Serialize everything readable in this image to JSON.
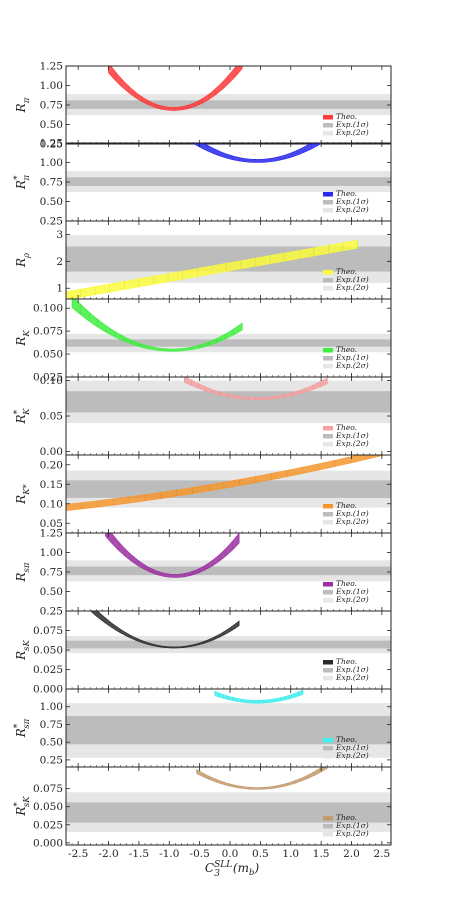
{
  "chart_data": {
    "type": "area",
    "shared_x": {
      "xlim": [
        -2.7,
        2.65
      ],
      "ticks": [
        "-2.5",
        "-2.0",
        "-1.5",
        "-1.0",
        "-0.5",
        "0.0",
        "0.5",
        "1.0",
        "1.5",
        "2.0",
        "2.5"
      ],
      "tick_values": [
        -2.5,
        -2.0,
        -1.5,
        -1.0,
        -0.5,
        0.0,
        0.5,
        1.0,
        1.5,
        2.0,
        2.5
      ],
      "xlabel_main": "C",
      "xlabel_sub": "3",
      "xlabel_sup": "SLL",
      "xlabel_tail": "(m",
      "xlabel_tail_sub": "b",
      "xlabel_close": ")"
    },
    "legend_labels": {
      "theo": "Theo.",
      "exp1": "Exp.(1σ)",
      "exp2": "Exp.(2σ)"
    },
    "legend_position": "bottom-right",
    "colors": {
      "exp1": "#bcbcbc",
      "exp2": "#e6e6e6"
    },
    "panels": [
      {
        "ylabel": "R",
        "ysub": "π",
        "ysup": "",
        "ylim": [
          0.25,
          1.25
        ],
        "yticks": [
          "0.25",
          "0.50",
          "0.75",
          "1.00",
          "1.25"
        ],
        "ytick_values": [
          0.25,
          0.5,
          0.75,
          1.0,
          1.25
        ],
        "exp1": [
          0.7,
          0.81
        ],
        "exp2": [
          0.62,
          0.89
        ],
        "color": "#ff3a3a",
        "theory": {
          "x_range": [
            -2.0,
            0.2
          ],
          "center": -0.93,
          "vertex": [
            0.68,
            0.72
          ],
          "curvature": [
            0.42,
            0.5
          ]
        }
      },
      {
        "ylabel": "R",
        "ysub": "π",
        "ysup": "*",
        "ylim": [
          0.25,
          1.25
        ],
        "yticks": [
          "0.25",
          "0.50",
          "0.75",
          "1.00",
          "1.25"
        ],
        "ytick_values": [
          0.25,
          0.5,
          0.75,
          1.0,
          1.25
        ],
        "exp1": [
          0.7,
          0.81
        ],
        "exp2": [
          0.62,
          0.89
        ],
        "color": "#2828ee",
        "theory": {
          "x_range": [
            -0.6,
            1.55
          ],
          "center": 0.45,
          "vertex": [
            1.0,
            1.04
          ],
          "curvature": [
            0.22,
            0.27
          ]
        }
      },
      {
        "ylabel": "R",
        "ysub": "ρ",
        "ysup": "",
        "ylim": [
          0.6,
          3.5
        ],
        "yticks": [
          "1",
          "2",
          "3"
        ],
        "ytick_values": [
          1,
          2,
          3
        ],
        "exp1": [
          1.62,
          2.55
        ],
        "exp2": [
          1.2,
          2.97
        ],
        "color": "#fafa3c",
        "theory": {
          "line": true,
          "x_range": [
            -2.7,
            2.1
          ],
          "y0": [
            1.65,
            1.95
          ],
          "slope": 0.4
        }
      },
      {
        "ylabel": "R",
        "ysub": "K",
        "ysup": "",
        "ylim": [
          0.025,
          0.11
        ],
        "yticks": [
          "0.025",
          "0.050",
          "0.075",
          "0.100"
        ],
        "ytick_values": [
          0.025,
          0.05,
          0.075,
          0.1
        ],
        "exp1": [
          0.058,
          0.066
        ],
        "exp2": [
          0.052,
          0.072
        ],
        "color": "#3ef03e",
        "theory": {
          "x_range": [
            -2.6,
            0.2
          ],
          "center": -0.95,
          "vertex": [
            0.053,
            0.0555
          ],
          "curvature": [
            0.0175,
            0.0215
          ]
        }
      },
      {
        "ylabel": "R",
        "ysub": "K",
        "ysup": "*",
        "ylim": [
          -0.005,
          0.105
        ],
        "yticks": [
          "0.00",
          "0.05",
          "0.10"
        ],
        "ytick_values": [
          0.0,
          0.05,
          0.1
        ],
        "exp1": [
          0.055,
          0.085
        ],
        "exp2": [
          0.04,
          0.1
        ],
        "color": "#f6a0a0",
        "theory": {
          "x_range": [
            -0.75,
            1.6
          ],
          "center": 0.45,
          "vertex": [
            0.073,
            0.076
          ],
          "curvature": [
            0.017,
            0.021
          ]
        }
      },
      {
        "ylabel": "R",
        "ysub": "K*",
        "ysup": "",
        "ylim": [
          0.025,
          0.225
        ],
        "yticks": [
          "0.05",
          "0.10",
          "0.15",
          "0.20"
        ],
        "ytick_values": [
          0.05,
          0.1,
          0.15,
          0.2
        ],
        "exp1": [
          0.115,
          0.16
        ],
        "exp2": [
          0.09,
          0.185
        ],
        "color": "#f5962e",
        "theory": {
          "line": true,
          "x_range": [
            -2.7,
            2.5
          ],
          "y0": [
            0.142,
            0.158
          ],
          "slope": 0.0275,
          "curve": 0.002
        }
      },
      {
        "ylabel": "R",
        "ysub": "sπ",
        "ysup": "",
        "ylim": [
          0.25,
          1.25
        ],
        "yticks": [
          "0.25",
          "0.50",
          "0.75",
          "1.00",
          "1.25"
        ],
        "ytick_values": [
          0.25,
          0.5,
          0.75,
          1.0,
          1.25
        ],
        "exp1": [
          0.71,
          0.82
        ],
        "exp2": [
          0.63,
          0.9
        ],
        "color": "#9b2fa1",
        "theory": {
          "x_range": [
            -2.05,
            0.15
          ],
          "center": -0.9,
          "vertex": [
            0.68,
            0.72
          ],
          "curvature": [
            0.4,
            0.48
          ]
        }
      },
      {
        "ylabel": "R",
        "ysub": "sK",
        "ysup": "",
        "ylim": [
          0.0,
          0.1
        ],
        "yticks": [
          "0.000",
          "0.025",
          "0.050",
          "0.075"
        ],
        "ytick_values": [
          0.0,
          0.025,
          0.05,
          0.075
        ],
        "exp1": [
          0.052,
          0.062
        ],
        "exp2": [
          0.046,
          0.068
        ],
        "color": "#2b2b2b",
        "theory": {
          "x_range": [
            -2.45,
            0.15
          ],
          "center": -0.92,
          "vertex": [
            0.0525,
            0.054
          ],
          "curvature": [
            0.025,
            0.029
          ]
        }
      },
      {
        "ylabel": "R",
        "ysub": "sπ",
        "ysup": "*",
        "ylim": [
          0.15,
          1.25
        ],
        "yticks": [
          "0.25",
          "0.50",
          "0.75",
          "1.00"
        ],
        "ytick_values": [
          0.25,
          0.5,
          0.75,
          1.0
        ],
        "exp1": [
          0.47,
          0.87
        ],
        "exp2": [
          0.28,
          1.05
        ],
        "color": "#3ef0f0",
        "theory": {
          "x_range": [
            -0.25,
            1.2
          ],
          "center": 0.45,
          "vertex": [
            1.05,
            1.09
          ],
          "curvature": [
            0.22,
            0.26
          ]
        }
      },
      {
        "ylabel": "R",
        "ysub": "sK",
        "ysup": "*",
        "ylim": [
          -0.003,
          0.105
        ],
        "yticks": [
          "0.000",
          "0.025",
          "0.050",
          "0.075"
        ],
        "ytick_values": [
          0.0,
          0.025,
          0.05,
          0.075
        ],
        "exp1": [
          0.028,
          0.056
        ],
        "exp2": [
          0.015,
          0.07
        ],
        "color": "#c39a6b",
        "theory": {
          "x_range": [
            -0.55,
            1.6
          ],
          "center": 0.45,
          "vertex": [
            0.074,
            0.0765
          ],
          "curvature": [
            0.022,
            0.025
          ]
        }
      }
    ]
  }
}
